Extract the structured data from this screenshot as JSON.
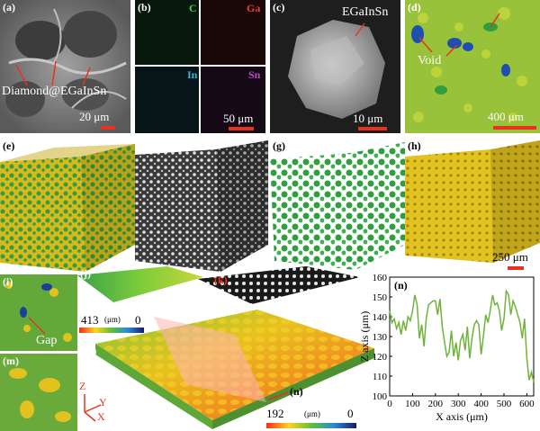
{
  "panels": {
    "a": {
      "label": "(a)",
      "annotation": "Diamond@EGaInSn",
      "scale": "20 μm"
    },
    "b": {
      "label": "(b)",
      "elements": [
        "C",
        "Ga",
        "In",
        "Sn"
      ],
      "scale": "50 μm"
    },
    "c": {
      "label": "(c)",
      "annotation": "EGaInSn",
      "scale": "10 μm"
    },
    "d": {
      "label": "(d)",
      "annotation": "Void",
      "scale": "400 μm"
    },
    "e": {
      "label": "(e)"
    },
    "f": {
      "label": "(f)"
    },
    "g": {
      "label": "(g)"
    },
    "h": {
      "label": "(h)",
      "scale": "250 μm"
    },
    "i": {
      "label": "(i)",
      "annotation": "Gap"
    },
    "j": {
      "label": "(j)",
      "colorbar_max": "413",
      "colorbar_unit": "(μm)",
      "colorbar_min": "0"
    },
    "k": {
      "label": "(k)"
    },
    "l": {
      "label": "(l)",
      "colorbar_max": "192",
      "colorbar_unit": "(μm)",
      "colorbar_min": "0",
      "marker": "(n)"
    },
    "m": {
      "label": "(m)"
    },
    "axes3d": {
      "z": "Z",
      "y": "Y",
      "x": "X"
    }
  },
  "colors": {
    "accent": "#e8321f",
    "line": "#6fb43a",
    "diamond": "#2f9e3f",
    "metal": "#e2c21f"
  },
  "chart_data": {
    "type": "line",
    "panel_label": "(n)",
    "xlabel": "X axis (μm)",
    "ylabel": "Z axis (μm)",
    "xlim": [
      0,
      630
    ],
    "ylim": [
      100,
      160
    ],
    "xticks": [
      0,
      100,
      200,
      300,
      400,
      500,
      600
    ],
    "yticks": [
      100,
      110,
      120,
      130,
      140,
      150,
      160
    ],
    "series": [
      {
        "name": "profile",
        "x": [
          0,
          10,
          20,
          30,
          40,
          50,
          60,
          70,
          80,
          90,
          100,
          110,
          120,
          130,
          140,
          150,
          160,
          170,
          180,
          190,
          200,
          210,
          220,
          230,
          240,
          250,
          260,
          270,
          280,
          290,
          300,
          310,
          320,
          330,
          340,
          350,
          360,
          370,
          380,
          390,
          400,
          410,
          420,
          430,
          440,
          450,
          460,
          470,
          480,
          490,
          500,
          510,
          520,
          530,
          540,
          550,
          560,
          570,
          580,
          590,
          600,
          610,
          620,
          630
        ],
        "y": [
          143,
          137,
          139,
          134,
          137,
          131,
          138,
          133,
          140,
          138,
          143,
          151,
          146,
          129,
          136,
          125,
          139,
          146,
          147,
          148,
          148,
          141,
          149,
          135,
          127,
          120,
          122,
          133,
          120,
          127,
          118,
          128,
          131,
          123,
          135,
          119,
          129,
          136,
          138,
          136,
          121,
          130,
          141,
          137,
          143,
          151,
          146,
          147,
          143,
          133,
          139,
          153,
          151,
          141,
          148,
          145,
          141,
          137,
          129,
          139,
          119,
          108,
          112,
          107
        ]
      }
    ]
  }
}
